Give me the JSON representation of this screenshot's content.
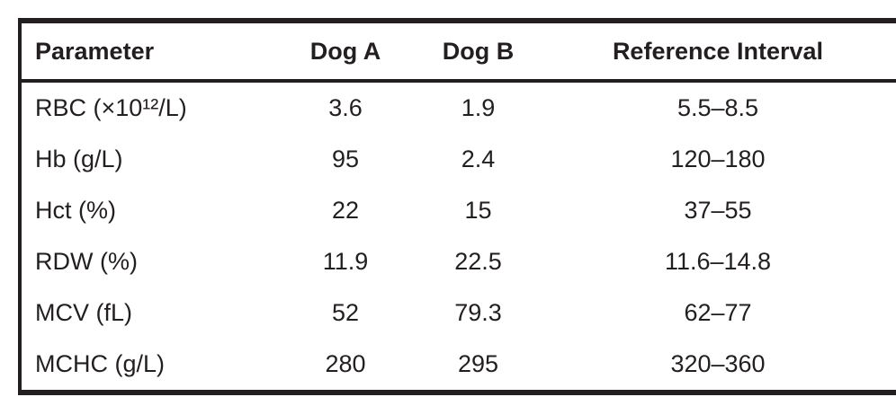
{
  "colors": {
    "text": "#231f20",
    "border": "#231f20",
    "background": "#ffffff"
  },
  "table": {
    "columns": [
      {
        "label": "Parameter"
      },
      {
        "label": "Dog A"
      },
      {
        "label": "Dog B"
      },
      {
        "label": "Reference Interval"
      }
    ],
    "rows": [
      {
        "parameter": "RBC (×10¹²/L)",
        "dog_a": "3.6",
        "dog_b": "1.9",
        "reference_interval": "5.5–8.5"
      },
      {
        "parameter": "Hb (g/L)",
        "dog_a": "95",
        "dog_b": "2.4",
        "reference_interval": "120–180"
      },
      {
        "parameter": "Hct (%)",
        "dog_a": "22",
        "dog_b": "15",
        "reference_interval": "37–55"
      },
      {
        "parameter": "RDW (%)",
        "dog_a": "11.9",
        "dog_b": "22.5",
        "reference_interval": "11.6–14.8"
      },
      {
        "parameter": "MCV (fL)",
        "dog_a": "52",
        "dog_b": "79.3",
        "reference_interval": "62–77"
      },
      {
        "parameter": "MCHC (g/L)",
        "dog_a": "280",
        "dog_b": "295",
        "reference_interval": "320–360"
      }
    ]
  }
}
